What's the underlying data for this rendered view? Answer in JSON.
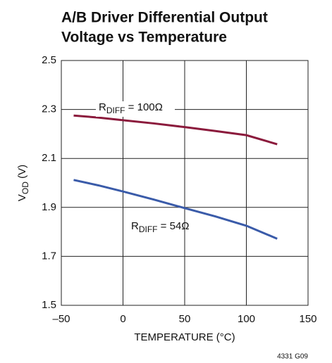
{
  "chart_data": {
    "type": "line",
    "title": [
      "A/B Driver Differential Output",
      "Voltage vs Temperature"
    ],
    "x_label": "TEMPERATURE (°C)",
    "y_label_parts": [
      "V",
      "OD",
      " (V)"
    ],
    "footnote": "4331 G09",
    "x": [
      -40,
      -20,
      0,
      25,
      50,
      75,
      100,
      125
    ],
    "series": [
      {
        "name_parts": [
          "R",
          "DIFF",
          " = 100Ω"
        ],
        "color": "#8b1a3c",
        "values": [
          2.275,
          2.267,
          2.256,
          2.243,
          2.228,
          2.212,
          2.195,
          2.158
        ]
      },
      {
        "name_parts": [
          "R",
          "DIFF",
          " = 54Ω"
        ],
        "color": "#3a5ba9",
        "values": [
          2.012,
          1.99,
          1.965,
          1.932,
          1.897,
          1.863,
          1.825,
          1.772
        ]
      }
    ],
    "xlim": [
      -50,
      150
    ],
    "xticks": [
      {
        "value": -50,
        "label": "–50"
      },
      0,
      50,
      100,
      150
    ],
    "ylim": [
      1.5,
      2.5
    ],
    "yticks": [
      1.5,
      1.7,
      1.9,
      2.1,
      2.3,
      2.5
    ],
    "grid": true
  }
}
